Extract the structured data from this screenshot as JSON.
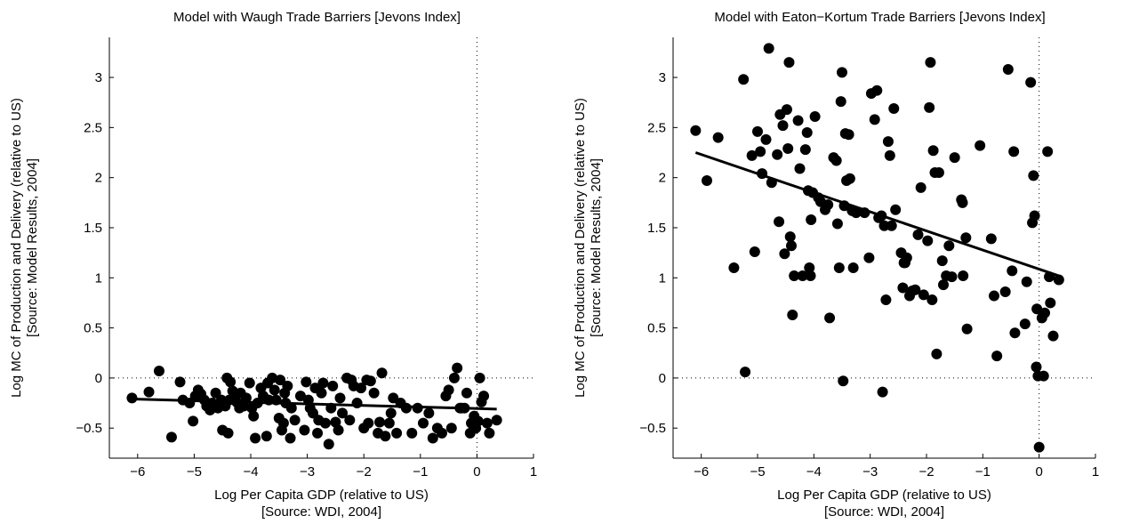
{
  "colors": {
    "marker": "#000000",
    "fit_line": "#000000",
    "axes": "#000000",
    "zero_line": "#000000"
  },
  "chart_data": [
    {
      "type": "scatter",
      "title": "Model with Waugh Trade Barriers [Jevons Index]",
      "xlabel": [
        "Log Per Capita GDP (relative to US)",
        "[Source: WDI, 2004]"
      ],
      "ylabel": [
        "Log MC of Production and Delivery (relative to US)",
        "[Source: Model Results, 2004]"
      ],
      "xlim": [
        -6.5,
        1
      ],
      "ylim": [
        -0.8,
        3.4
      ],
      "xticks": [
        -6,
        -5,
        -4,
        -3,
        -2,
        -1,
        0,
        1
      ],
      "yticks": [
        -0.5,
        0,
        0.5,
        1,
        1.5,
        2,
        2.5,
        3
      ],
      "xtick_labels": [
        "−6",
        "−5",
        "−4",
        "−3",
        "−2",
        "−1",
        "0",
        "1"
      ],
      "ytick_labels": [
        "−0.5",
        "0",
        "0.5",
        "1",
        "1.5",
        "2",
        "2.5",
        "3"
      ],
      "reference_lines": {
        "x": 0,
        "y": 0,
        "style": "dotted"
      },
      "fit_line": {
        "x": [
          -6.1,
          0.35
        ],
        "y": [
          -0.21,
          -0.31
        ]
      },
      "points": [
        [
          -6.1,
          -0.2
        ],
        [
          -5.8,
          -0.14
        ],
        [
          -5.62,
          0.07
        ],
        [
          -5.4,
          -0.59
        ],
        [
          -5.25,
          -0.04
        ],
        [
          -5.2,
          -0.22
        ],
        [
          -5.08,
          -0.25
        ],
        [
          -5.02,
          -0.43
        ],
        [
          -4.98,
          -0.18
        ],
        [
          -4.93,
          -0.12
        ],
        [
          -4.88,
          -0.16
        ],
        [
          -4.82,
          -0.22
        ],
        [
          -4.78,
          -0.28
        ],
        [
          -4.72,
          -0.32
        ],
        [
          -4.68,
          -0.25
        ],
        [
          -4.62,
          -0.15
        ],
        [
          -4.58,
          -0.3
        ],
        [
          -4.52,
          -0.22
        ],
        [
          -4.5,
          -0.52
        ],
        [
          -4.45,
          -0.28
        ],
        [
          -4.42,
          -0.0
        ],
        [
          -4.4,
          -0.55
        ],
        [
          -4.38,
          -0.22
        ],
        [
          -4.36,
          -0.04
        ],
        [
          -4.32,
          -0.13
        ],
        [
          -4.28,
          -0.18
        ],
        [
          -4.25,
          -0.24
        ],
        [
          -4.2,
          -0.3
        ],
        [
          -4.18,
          -0.15
        ],
        [
          -4.12,
          -0.28
        ],
        [
          -4.08,
          -0.2
        ],
        [
          -4.02,
          -0.05
        ],
        [
          -3.98,
          -0.3
        ],
        [
          -3.95,
          -0.38
        ],
        [
          -3.92,
          -0.6
        ],
        [
          -3.88,
          -0.25
        ],
        [
          -3.82,
          -0.1
        ],
        [
          -3.78,
          -0.18
        ],
        [
          -3.72,
          -0.58
        ],
        [
          -3.7,
          -0.05
        ],
        [
          -3.68,
          -0.22
        ],
        [
          -3.62,
          -0.0
        ],
        [
          -3.58,
          -0.12
        ],
        [
          -3.55,
          -0.22
        ],
        [
          -3.5,
          -0.4
        ],
        [
          -3.48,
          -0.02
        ],
        [
          -3.45,
          -0.52
        ],
        [
          -3.42,
          -0.45
        ],
        [
          -3.4,
          -0.15
        ],
        [
          -3.38,
          -0.25
        ],
        [
          -3.35,
          -0.08
        ],
        [
          -3.3,
          -0.6
        ],
        [
          -3.28,
          -0.3
        ],
        [
          -3.22,
          -0.42
        ],
        [
          -3.12,
          -0.18
        ],
        [
          -3.05,
          -0.52
        ],
        [
          -3.02,
          -0.04
        ],
        [
          -2.98,
          -0.22
        ],
        [
          -2.95,
          -0.3
        ],
        [
          -2.9,
          -0.35
        ],
        [
          -2.86,
          -0.1
        ],
        [
          -2.82,
          -0.55
        ],
        [
          -2.8,
          -0.42
        ],
        [
          -2.75,
          -0.15
        ],
        [
          -2.72,
          -0.05
        ],
        [
          -2.68,
          -0.45
        ],
        [
          -2.62,
          -0.66
        ],
        [
          -2.58,
          -0.3
        ],
        [
          -2.55,
          -0.08
        ],
        [
          -2.5,
          -0.44
        ],
        [
          -2.45,
          -0.52
        ],
        [
          -2.42,
          -0.2
        ],
        [
          -2.38,
          -0.35
        ],
        [
          -2.3,
          -0.0
        ],
        [
          -2.25,
          -0.42
        ],
        [
          -2.22,
          -0.02
        ],
        [
          -2.18,
          -0.08
        ],
        [
          -2.12,
          -0.25
        ],
        [
          -2.05,
          -0.1
        ],
        [
          -2.0,
          -0.5
        ],
        [
          -1.95,
          -0.02
        ],
        [
          -1.92,
          -0.45
        ],
        [
          -1.88,
          -0.03
        ],
        [
          -1.82,
          -0.15
        ],
        [
          -1.75,
          -0.55
        ],
        [
          -1.72,
          -0.44
        ],
        [
          -1.68,
          0.05
        ],
        [
          -1.62,
          -0.58
        ],
        [
          -1.55,
          -0.45
        ],
        [
          -1.52,
          -0.35
        ],
        [
          -1.48,
          -0.2
        ],
        [
          -1.42,
          -0.55
        ],
        [
          -1.35,
          -0.25
        ],
        [
          -1.25,
          -0.3
        ],
        [
          -1.15,
          -0.55
        ],
        [
          -1.05,
          -0.3
        ],
        [
          -0.95,
          -0.45
        ],
        [
          -0.85,
          -0.35
        ],
        [
          -0.78,
          -0.6
        ],
        [
          -0.7,
          -0.5
        ],
        [
          -0.62,
          -0.55
        ],
        [
          -0.55,
          -0.18
        ],
        [
          -0.5,
          -0.12
        ],
        [
          -0.45,
          -0.5
        ],
        [
          -0.4,
          0.0
        ],
        [
          -0.35,
          0.1
        ],
        [
          -0.3,
          -0.3
        ],
        [
          -0.27,
          -0.3
        ],
        [
          -0.22,
          -0.3
        ],
        [
          -0.18,
          -0.15
        ],
        [
          -0.12,
          -0.55
        ],
        [
          -0.1,
          -0.45
        ],
        [
          -0.05,
          -0.38
        ],
        [
          -0.02,
          -0.5
        ],
        [
          0.02,
          -0.43
        ],
        [
          0.05,
          -0.0
        ],
        [
          0.08,
          -0.24
        ],
        [
          0.12,
          -0.18
        ],
        [
          0.18,
          -0.45
        ],
        [
          0.22,
          -0.55
        ],
        [
          0.35,
          -0.42
        ]
      ]
    },
    {
      "type": "scatter",
      "title": "Model with Eaton−Kortum Trade Barriers [Jevons Index]",
      "xlabel": [
        "Log Per Capita GDP (relative to US)",
        "[Source: WDI, 2004]"
      ],
      "ylabel": [
        "Log MC of Production and Delivery (relative to US)",
        "[Source: Model Results, 2004]"
      ],
      "xlim": [
        -6.5,
        1
      ],
      "ylim": [
        -0.8,
        3.4
      ],
      "xticks": [
        -6,
        -5,
        -4,
        -3,
        -2,
        -1,
        0,
        1
      ],
      "yticks": [
        -0.5,
        0,
        0.5,
        1,
        1.5,
        2,
        2.5,
        3
      ],
      "xtick_labels": [
        "−6",
        "−5",
        "−4",
        "−3",
        "−2",
        "−1",
        "0",
        "1"
      ],
      "ytick_labels": [
        "−0.5",
        "0",
        "0.5",
        "1",
        "1.5",
        "2",
        "2.5",
        "3"
      ],
      "reference_lines": {
        "x": 0,
        "y": 0,
        "style": "dotted"
      },
      "fit_line": {
        "x": [
          -6.1,
          0.35
        ],
        "y": [
          2.25,
          1.02
        ]
      },
      "points": [
        [
          -6.1,
          2.47
        ],
        [
          -5.9,
          1.97
        ],
        [
          -5.7,
          2.4
        ],
        [
          -5.42,
          1.1
        ],
        [
          -5.25,
          2.98
        ],
        [
          -5.22,
          0.06
        ],
        [
          -5.1,
          2.22
        ],
        [
          -5.05,
          1.26
        ],
        [
          -5.0,
          2.46
        ],
        [
          -4.95,
          2.26
        ],
        [
          -4.92,
          2.04
        ],
        [
          -4.85,
          2.38
        ],
        [
          -4.8,
          3.29
        ],
        [
          -4.75,
          1.95
        ],
        [
          -4.65,
          2.23
        ],
        [
          -4.62,
          1.56
        ],
        [
          -4.6,
          2.63
        ],
        [
          -4.55,
          2.52
        ],
        [
          -4.52,
          1.24
        ],
        [
          -4.48,
          2.68
        ],
        [
          -4.46,
          2.29
        ],
        [
          -4.44,
          3.15
        ],
        [
          -4.42,
          1.41
        ],
        [
          -4.4,
          1.32
        ],
        [
          -4.38,
          0.63
        ],
        [
          -4.35,
          1.02
        ],
        [
          -4.28,
          2.57
        ],
        [
          -4.25,
          2.09
        ],
        [
          -4.2,
          1.02
        ],
        [
          -4.15,
          2.28
        ],
        [
          -4.12,
          2.45
        ],
        [
          -4.1,
          1.87
        ],
        [
          -4.08,
          1.1
        ],
        [
          -4.06,
          1.02
        ],
        [
          -4.05,
          1.58
        ],
        [
          -4.02,
          1.85
        ],
        [
          -3.98,
          2.61
        ],
        [
          -3.92,
          1.8
        ],
        [
          -3.88,
          1.76
        ],
        [
          -3.8,
          1.68
        ],
        [
          -3.75,
          1.73
        ],
        [
          -3.72,
          0.6
        ],
        [
          -3.65,
          2.2
        ],
        [
          -3.6,
          2.17
        ],
        [
          -3.58,
          1.54
        ],
        [
          -3.55,
          1.1
        ],
        [
          -3.52,
          2.76
        ],
        [
          -3.5,
          3.05
        ],
        [
          -3.48,
          -0.03
        ],
        [
          -3.46,
          1.72
        ],
        [
          -3.44,
          2.44
        ],
        [
          -3.42,
          1.97
        ],
        [
          -3.38,
          2.43
        ],
        [
          -3.36,
          1.99
        ],
        [
          -3.32,
          1.67
        ],
        [
          -3.3,
          1.1
        ],
        [
          -3.25,
          1.65
        ],
        [
          -3.1,
          1.65
        ],
        [
          -3.02,
          1.2
        ],
        [
          -2.98,
          2.84
        ],
        [
          -2.92,
          2.58
        ],
        [
          -2.88,
          2.87
        ],
        [
          -2.85,
          1.6
        ],
        [
          -2.8,
          1.62
        ],
        [
          -2.78,
          -0.14
        ],
        [
          -2.75,
          1.52
        ],
        [
          -2.72,
          0.78
        ],
        [
          -2.68,
          2.36
        ],
        [
          -2.65,
          2.22
        ],
        [
          -2.62,
          1.52
        ],
        [
          -2.58,
          2.69
        ],
        [
          -2.55,
          1.68
        ],
        [
          -2.45,
          1.25
        ],
        [
          -2.42,
          0.9
        ],
        [
          -2.4,
          1.15
        ],
        [
          -2.38,
          1.15
        ],
        [
          -2.35,
          1.2
        ],
        [
          -2.3,
          0.82
        ],
        [
          -2.25,
          0.87
        ],
        [
          -2.2,
          0.88
        ],
        [
          -2.15,
          1.43
        ],
        [
          -2.1,
          1.9
        ],
        [
          -2.05,
          0.83
        ],
        [
          -1.98,
          1.37
        ],
        [
          -1.95,
          2.7
        ],
        [
          -1.93,
          3.15
        ],
        [
          -1.9,
          0.78
        ],
        [
          -1.88,
          2.27
        ],
        [
          -1.85,
          2.05
        ],
        [
          -1.82,
          0.24
        ],
        [
          -1.78,
          2.05
        ],
        [
          -1.72,
          1.17
        ],
        [
          -1.7,
          0.93
        ],
        [
          -1.65,
          1.02
        ],
        [
          -1.6,
          1.32
        ],
        [
          -1.55,
          1.01
        ],
        [
          -1.5,
          2.2
        ],
        [
          -1.38,
          1.78
        ],
        [
          -1.36,
          1.75
        ],
        [
          -1.35,
          1.02
        ],
        [
          -1.3,
          1.4
        ],
        [
          -1.28,
          0.49
        ],
        [
          -1.05,
          2.32
        ],
        [
          -0.85,
          1.39
        ],
        [
          -0.8,
          0.82
        ],
        [
          -0.75,
          0.22
        ],
        [
          -0.6,
          0.86
        ],
        [
          -0.55,
          3.08
        ],
        [
          -0.48,
          1.07
        ],
        [
          -0.45,
          2.26
        ],
        [
          -0.43,
          0.45
        ],
        [
          -0.25,
          0.54
        ],
        [
          -0.22,
          0.96
        ],
        [
          -0.15,
          2.95
        ],
        [
          -0.12,
          1.55
        ],
        [
          -0.1,
          2.02
        ],
        [
          -0.08,
          1.62
        ],
        [
          -0.05,
          0.11
        ],
        [
          -0.04,
          0.69
        ],
        [
          -0.02,
          0.02
        ],
        [
          0.0,
          -0.69
        ],
        [
          0.05,
          0.6
        ],
        [
          0.08,
          0.02
        ],
        [
          0.1,
          0.65
        ],
        [
          0.15,
          2.26
        ],
        [
          0.18,
          1.01
        ],
        [
          0.2,
          0.75
        ],
        [
          0.25,
          0.42
        ],
        [
          0.35,
          0.98
        ]
      ]
    }
  ]
}
